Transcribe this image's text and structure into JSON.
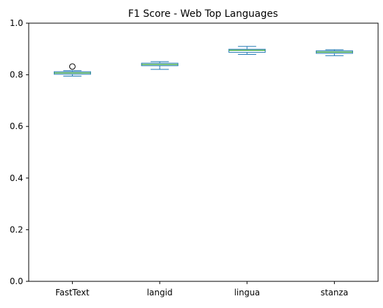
{
  "chart_data": {
    "type": "box",
    "title": "F1 Score - Web Top Languages",
    "xlabel": "",
    "ylabel": "",
    "ylim": [
      0,
      1
    ],
    "yticks": [
      "0.0",
      "0.2",
      "0.4",
      "0.6",
      "0.8",
      "1.0"
    ],
    "grid": false,
    "categories": [
      "FastText",
      "langid",
      "lingua",
      "stanza"
    ],
    "boxes": [
      {
        "category": "FastText",
        "whisker_low": 0.795,
        "q1": 0.802,
        "median": 0.807,
        "q3": 0.812,
        "whisker_high": 0.816,
        "outliers": [
          0.832
        ]
      },
      {
        "category": "langid",
        "whisker_low": 0.821,
        "q1": 0.835,
        "median": 0.84,
        "q3": 0.845,
        "whisker_high": 0.851,
        "outliers": []
      },
      {
        "category": "lingua",
        "whisker_low": 0.879,
        "q1": 0.887,
        "median": 0.895,
        "q3": 0.899,
        "whisker_high": 0.91,
        "outliers": []
      },
      {
        "category": "stanza",
        "whisker_low": 0.874,
        "q1": 0.883,
        "median": 0.888,
        "q3": 0.893,
        "whisker_high": 0.897,
        "outliers": []
      }
    ],
    "colors": {
      "box": "#1f77b4",
      "median": "#2ca02c",
      "outlier": "#000000",
      "axes": "#000000"
    }
  }
}
